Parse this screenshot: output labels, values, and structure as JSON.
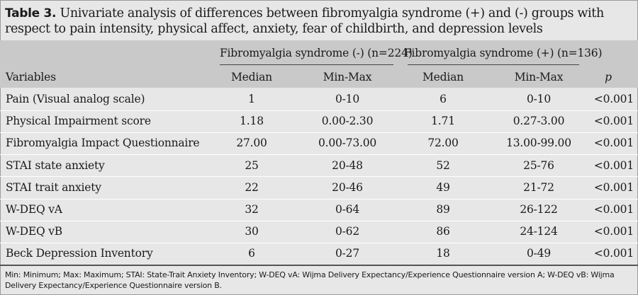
{
  "caption": {
    "label": "Table 3.",
    "text": "Univariate analysis of differences between fibromyalgia syndrome (+) and (-) groups with respect to pain intensity, physical affect, anxiety, fear of childbirth, and depression levels"
  },
  "header": {
    "group_neg": "Fibromyalgia syndrome (-) (n=224)",
    "group_pos": "Fibromyalgia syndrome (+) (n=136)",
    "variables": "Variables",
    "median_neg": "Median",
    "minmax_neg": "Min-Max",
    "median_pos": "Median",
    "minmax_pos": "Min-Max",
    "p": "p"
  },
  "rows": [
    {
      "variable": "Pain (Visual analog scale)",
      "median_neg": "1",
      "minmax_neg": "0-10",
      "median_pos": "6",
      "minmax_pos": "0-10",
      "p": "<0.001"
    },
    {
      "variable": "Physical Impairment score",
      "median_neg": "1.18",
      "minmax_neg": "0.00-2.30",
      "median_pos": "1.71",
      "minmax_pos": "0.27-3.00",
      "p": "<0.001"
    },
    {
      "variable": "Fibromyalgia Impact Questionnaire",
      "median_neg": "27.00",
      "minmax_neg": "0.00-73.00",
      "median_pos": "72.00",
      "minmax_pos": "13.00-99.00",
      "p": "<0.001"
    },
    {
      "variable": "STAI state anxiety",
      "median_neg": "25",
      "minmax_neg": "20-48",
      "median_pos": "52",
      "minmax_pos": "25-76",
      "p": "<0.001"
    },
    {
      "variable": "STAI trait anxiety",
      "median_neg": "22",
      "minmax_neg": "20-46",
      "median_pos": "49",
      "minmax_pos": "21-72",
      "p": "<0.001"
    },
    {
      "variable": "W-DEQ vA",
      "median_neg": "32",
      "minmax_neg": "0-64",
      "median_pos": "89",
      "minmax_pos": "26-122",
      "p": "<0.001"
    },
    {
      "variable": "W-DEQ vB",
      "median_neg": "30",
      "minmax_neg": "0-62",
      "median_pos": "86",
      "minmax_pos": "24-124",
      "p": "<0.001"
    },
    {
      "variable": "Beck Depression Inventory",
      "median_neg": "6",
      "minmax_neg": "0-27",
      "median_pos": "18",
      "minmax_pos": "0-49",
      "p": "<0.001"
    }
  ],
  "footnote": "Min: Minimum; Max: Maximum; STAI: State-Trait Anxiety Inventory; W-DEQ vA: Wijma Delivery Expectancy/Experience Questionnaire version A; W-DEQ vB: Wijma Delivery Expectancy/Experience Questionnaire version B."
}
